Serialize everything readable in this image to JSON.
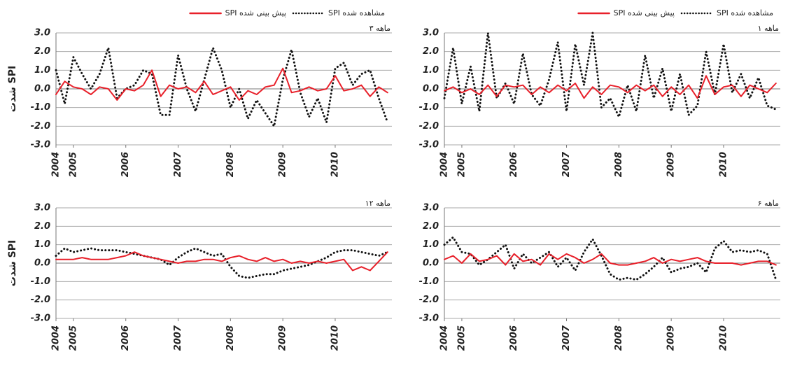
{
  "chart_data": [
    {
      "type": "line",
      "panel_label": "۳ ماهه",
      "y_label": "شدت SPI",
      "legend": "top",
      "ylim": [
        -3,
        3
      ],
      "yticks": [
        {
          "value": 3,
          "label": "3.0"
        },
        {
          "value": 2,
          "label": "2.0"
        },
        {
          "value": 1,
          "label": "1.0"
        },
        {
          "value": 0,
          "label": "0.0"
        },
        {
          "value": -1,
          "label": "-1.0"
        },
        {
          "value": -2,
          "label": "-2.0"
        },
        {
          "value": -3,
          "label": "-3.0"
        }
      ],
      "xlim": [
        0,
        77
      ],
      "xticks": [
        {
          "value": 0,
          "label": "2004"
        },
        {
          "value": 4,
          "label": "2005"
        },
        {
          "value": 16,
          "label": "2006"
        },
        {
          "value": 28,
          "label": "2007"
        },
        {
          "value": 40,
          "label": "2008"
        },
        {
          "value": 52,
          "label": "2009"
        },
        {
          "value": 64,
          "label": "2010"
        }
      ],
      "grid": true,
      "x": [
        0,
        2,
        4,
        6,
        8,
        10,
        12,
        14,
        16,
        18,
        20,
        22,
        24,
        26,
        28,
        30,
        32,
        34,
        36,
        38,
        40,
        42,
        44,
        46,
        48,
        50,
        52,
        54,
        56,
        58,
        60,
        62,
        64,
        66,
        68,
        70,
        72,
        74,
        76
      ],
      "series": [
        {
          "name": "SPI مشاهده شده",
          "color": "#111111",
          "style": "dotted",
          "values": [
            1.0,
            -0.8,
            1.7,
            0.8,
            0.0,
            0.8,
            2.2,
            -0.5,
            0.0,
            0.2,
            1.0,
            0.8,
            -1.4,
            -1.4,
            1.8,
            0.0,
            -1.2,
            0.5,
            2.2,
            1.0,
            -1.0,
            0.0,
            -1.6,
            -0.6,
            -1.3,
            -2.0,
            0.5,
            2.1,
            -0.2,
            -1.5,
            -0.5,
            -1.8,
            1.1,
            1.4,
            0.2,
            0.8,
            1.0,
            -0.5,
            -1.8
          ]
        },
        {
          "name": "SPI پیش بینی شده",
          "color": "#e8202a",
          "style": "solid",
          "values": [
            -0.3,
            0.4,
            0.1,
            0.0,
            -0.3,
            0.1,
            0.0,
            -0.6,
            0.0,
            -0.1,
            0.2,
            1.0,
            -0.4,
            0.2,
            0.0,
            0.1,
            -0.2,
            0.4,
            -0.3,
            -0.1,
            0.1,
            -0.6,
            -0.1,
            -0.3,
            0.1,
            0.2,
            1.1,
            -0.2,
            -0.1,
            0.1,
            -0.1,
            0.0,
            0.7,
            -0.1,
            0.0,
            0.2,
            -0.4,
            0.1,
            -0.2
          ]
        }
      ]
    },
    {
      "type": "line",
      "panel_label": "۱ ماهه",
      "legend": "top",
      "ylim": [
        -3,
        3
      ],
      "yticks": [
        {
          "value": 3,
          "label": "3.0"
        },
        {
          "value": 2,
          "label": "2.0"
        },
        {
          "value": 1,
          "label": "1.0"
        },
        {
          "value": 0,
          "label": "0.0"
        },
        {
          "value": -1,
          "label": "-1.0"
        },
        {
          "value": -2,
          "label": "-2.0"
        },
        {
          "value": -3,
          "label": "-3.0"
        }
      ],
      "xlim": [
        0,
        77
      ],
      "xticks": [
        {
          "value": 0,
          "label": "2004"
        },
        {
          "value": 4,
          "label": "2005"
        },
        {
          "value": 16,
          "label": "2006"
        },
        {
          "value": 28,
          "label": "2007"
        },
        {
          "value": 40,
          "label": "2008"
        },
        {
          "value": 52,
          "label": "2009"
        },
        {
          "value": 64,
          "label": "2010"
        }
      ],
      "grid": true,
      "x": [
        0,
        2,
        4,
        6,
        8,
        10,
        12,
        14,
        16,
        18,
        20,
        22,
        24,
        26,
        28,
        30,
        32,
        34,
        36,
        38,
        40,
        42,
        44,
        46,
        48,
        50,
        52,
        54,
        56,
        58,
        60,
        62,
        64,
        66,
        68,
        70,
        72,
        74,
        76
      ],
      "series": [
        {
          "name": "SPI مشاهده شده",
          "color": "#111111",
          "style": "dotted",
          "values": [
            -0.5,
            2.2,
            -0.8,
            1.2,
            -1.2,
            3.0,
            -0.5,
            0.3,
            -0.8,
            1.9,
            -0.3,
            -0.9,
            0.5,
            2.5,
            -1.2,
            2.4,
            0.2,
            3.0,
            -1.0,
            -0.5,
            -1.5,
            0.2,
            -1.2,
            1.8,
            -0.5,
            1.1,
            -1.2,
            0.8,
            -1.4,
            -0.9,
            2.0,
            -0.3,
            2.4,
            -0.2,
            0.8,
            -0.5,
            0.6,
            -0.9,
            -1.1
          ]
        },
        {
          "name": "SPI پیش بینی شده",
          "color": "#e8202a",
          "style": "solid",
          "values": [
            -0.1,
            0.1,
            -0.2,
            0.0,
            -0.3,
            0.2,
            -0.4,
            0.2,
            0.1,
            0.2,
            -0.3,
            0.1,
            -0.2,
            0.2,
            -0.1,
            0.3,
            -0.5,
            0.1,
            -0.3,
            0.2,
            0.1,
            -0.2,
            0.2,
            -0.1,
            0.2,
            -0.4,
            0.1,
            -0.3,
            0.2,
            -0.5,
            0.7,
            -0.3,
            0.1,
            0.2,
            -0.4,
            0.2,
            0.0,
            -0.2,
            0.3
          ]
        }
      ]
    },
    {
      "type": "line",
      "panel_label": "۱۲ ماهه",
      "y_label": "شدت SPI",
      "ylim": [
        -3,
        3
      ],
      "yticks": [
        {
          "value": 3,
          "label": "3.0"
        },
        {
          "value": 2,
          "label": "2.0"
        },
        {
          "value": 1,
          "label": "1.0"
        },
        {
          "value": 0,
          "label": "0.0"
        },
        {
          "value": -1,
          "label": "-1.0"
        },
        {
          "value": -2,
          "label": "-2.0"
        },
        {
          "value": -3,
          "label": "-3.0"
        }
      ],
      "xlim": [
        0,
        77
      ],
      "xticks": [
        {
          "value": 0,
          "label": "2004"
        },
        {
          "value": 4,
          "label": "2005"
        },
        {
          "value": 16,
          "label": "2006"
        },
        {
          "value": 28,
          "label": "2007"
        },
        {
          "value": 40,
          "label": "2008"
        },
        {
          "value": 52,
          "label": "2009"
        },
        {
          "value": 64,
          "label": "2010"
        }
      ],
      "grid": true,
      "x": [
        0,
        2,
        4,
        6,
        8,
        10,
        12,
        14,
        16,
        18,
        20,
        22,
        24,
        26,
        28,
        30,
        32,
        34,
        36,
        38,
        40,
        42,
        44,
        46,
        48,
        50,
        52,
        54,
        56,
        58,
        60,
        62,
        64,
        66,
        68,
        70,
        72,
        74,
        76
      ],
      "series": [
        {
          "color": "#111111",
          "style": "dotted",
          "values": [
            0.4,
            0.8,
            0.6,
            0.7,
            0.8,
            0.7,
            0.7,
            0.7,
            0.6,
            0.5,
            0.4,
            0.3,
            0.2,
            -0.1,
            0.3,
            0.6,
            0.8,
            0.6,
            0.4,
            0.5,
            -0.2,
            -0.7,
            -0.8,
            -0.7,
            -0.6,
            -0.6,
            -0.4,
            -0.3,
            -0.2,
            -0.1,
            0.1,
            0.3,
            0.6,
            0.7,
            0.7,
            0.6,
            0.5,
            0.4,
            0.6
          ]
        },
        {
          "color": "#e8202a",
          "style": "solid",
          "values": [
            0.2,
            0.2,
            0.2,
            0.3,
            0.2,
            0.2,
            0.2,
            0.3,
            0.4,
            0.6,
            0.4,
            0.3,
            0.2,
            0.1,
            0.0,
            0.1,
            0.1,
            0.2,
            0.2,
            0.1,
            0.3,
            0.4,
            0.2,
            0.1,
            0.3,
            0.1,
            0.2,
            0.0,
            0.1,
            0.0,
            0.1,
            0.0,
            0.1,
            0.2,
            -0.4,
            -0.2,
            -0.4,
            0.1,
            0.6
          ]
        }
      ]
    },
    {
      "type": "line",
      "panel_label": "۶ ماهه",
      "ylim": [
        -3,
        3
      ],
      "yticks": [
        {
          "value": 3,
          "label": "3.0"
        },
        {
          "value": 2,
          "label": "2.0"
        },
        {
          "value": 1,
          "label": "1.0"
        },
        {
          "value": 0,
          "label": "0.0"
        },
        {
          "value": -1,
          "label": "-1.0"
        },
        {
          "value": -2,
          "label": "-2.0"
        },
        {
          "value": -3,
          "label": "-3.0"
        }
      ],
      "xlim": [
        0,
        77
      ],
      "xticks": [
        {
          "value": 0,
          "label": "2004"
        },
        {
          "value": 4,
          "label": "2005"
        },
        {
          "value": 16,
          "label": "2006"
        },
        {
          "value": 28,
          "label": "2007"
        },
        {
          "value": 40,
          "label": "2008"
        },
        {
          "value": 52,
          "label": "2009"
        },
        {
          "value": 64,
          "label": "2010"
        }
      ],
      "grid": true,
      "x": [
        0,
        2,
        4,
        6,
        8,
        10,
        12,
        14,
        16,
        18,
        20,
        22,
        24,
        26,
        28,
        30,
        32,
        34,
        36,
        38,
        40,
        42,
        44,
        46,
        48,
        50,
        52,
        54,
        56,
        58,
        60,
        62,
        64,
        66,
        68,
        70,
        72,
        74,
        76
      ],
      "series": [
        {
          "color": "#111111",
          "style": "dotted",
          "values": [
            1.0,
            1.4,
            0.6,
            0.5,
            -0.1,
            0.2,
            0.6,
            1.0,
            -0.3,
            0.5,
            0.0,
            0.3,
            0.6,
            -0.2,
            0.3,
            -0.4,
            0.6,
            1.3,
            0.4,
            -0.6,
            -0.9,
            -0.8,
            -0.9,
            -0.6,
            -0.2,
            0.3,
            -0.5,
            -0.3,
            -0.2,
            0.0,
            -0.5,
            0.8,
            1.2,
            0.6,
            0.7,
            0.6,
            0.7,
            0.5,
            -0.9
          ]
        },
        {
          "color": "#e8202a",
          "style": "solid",
          "values": [
            0.2,
            0.4,
            0.0,
            0.5,
            0.1,
            0.2,
            0.4,
            -0.1,
            0.5,
            0.1,
            0.2,
            -0.1,
            0.5,
            0.2,
            0.5,
            0.3,
            0.0,
            0.2,
            0.5,
            0.0,
            -0.1,
            -0.1,
            0.0,
            0.1,
            0.3,
            0.0,
            0.2,
            0.1,
            0.2,
            0.3,
            0.1,
            0.0,
            0.0,
            0.0,
            -0.1,
            0.0,
            0.1,
            0.1,
            -0.1
          ]
        }
      ]
    }
  ]
}
